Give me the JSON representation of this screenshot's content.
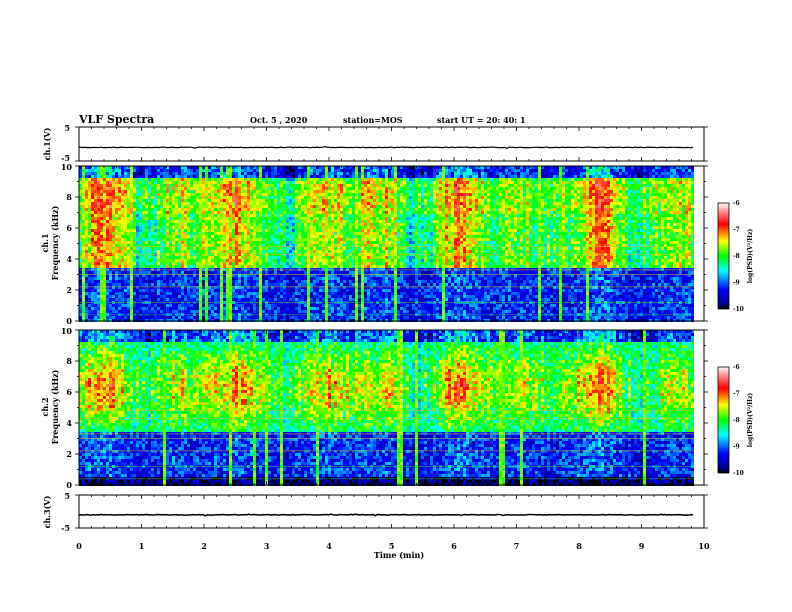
{
  "header": {
    "title": "VLF Spectra",
    "date": "Oct. 5  , 2020",
    "station": "station=MOS",
    "start": "start  UT  =   20: 40: 1"
  },
  "chart_data": [
    {
      "type": "line",
      "name": "ch1-waveform",
      "ylabel": "ch.1(V)",
      "ylim": [
        -5,
        5
      ],
      "yticks": [
        "5",
        "-5"
      ],
      "xlim": [
        0,
        10
      ],
      "level": -1.0,
      "trace_end": 9.84
    },
    {
      "type": "heatmap",
      "name": "ch1-spectrogram",
      "ylabel_line1": "ch.1",
      "ylabel_line2": "Frequency  (kHz)",
      "ylim": [
        0,
        10
      ],
      "yticks": [
        "0",
        "2",
        "4",
        "6",
        "8",
        "10"
      ],
      "xlim": [
        0,
        10
      ],
      "data_end": 9.84,
      "colorbar": {
        "label": "log(PSD)(V²/Hz)",
        "range": [
          -10,
          -6
        ],
        "ticks": [
          "-6",
          "-7",
          "-8",
          "-9",
          "-10"
        ]
      }
    },
    {
      "type": "heatmap",
      "name": "ch2-spectrogram",
      "ylabel_line1": "ch.2",
      "ylabel_line2": "Frequency  (kHz)",
      "ylim": [
        0,
        10
      ],
      "yticks": [
        "0",
        "2",
        "4",
        "6",
        "8",
        "10"
      ],
      "xlim": [
        0,
        10
      ],
      "data_end": 9.84,
      "colorbar": {
        "label": "log(PSD)(V²/Hz)",
        "range": [
          -10,
          -6
        ],
        "ticks": [
          "-6",
          "-7",
          "-8",
          "-9",
          "-10"
        ]
      }
    },
    {
      "type": "line",
      "name": "ch3-waveform",
      "ylabel": "ch.3(V)",
      "ylim": [
        -5,
        5
      ],
      "yticks": [
        "5",
        "-5"
      ],
      "xlim": [
        0,
        10
      ],
      "level": -1.0,
      "trace_end": 9.84
    }
  ],
  "xaxis": {
    "label": "Time  (min)",
    "ticks": [
      "0",
      "1",
      "2",
      "3",
      "4",
      "5",
      "6",
      "7",
      "8",
      "9",
      "10"
    ]
  }
}
